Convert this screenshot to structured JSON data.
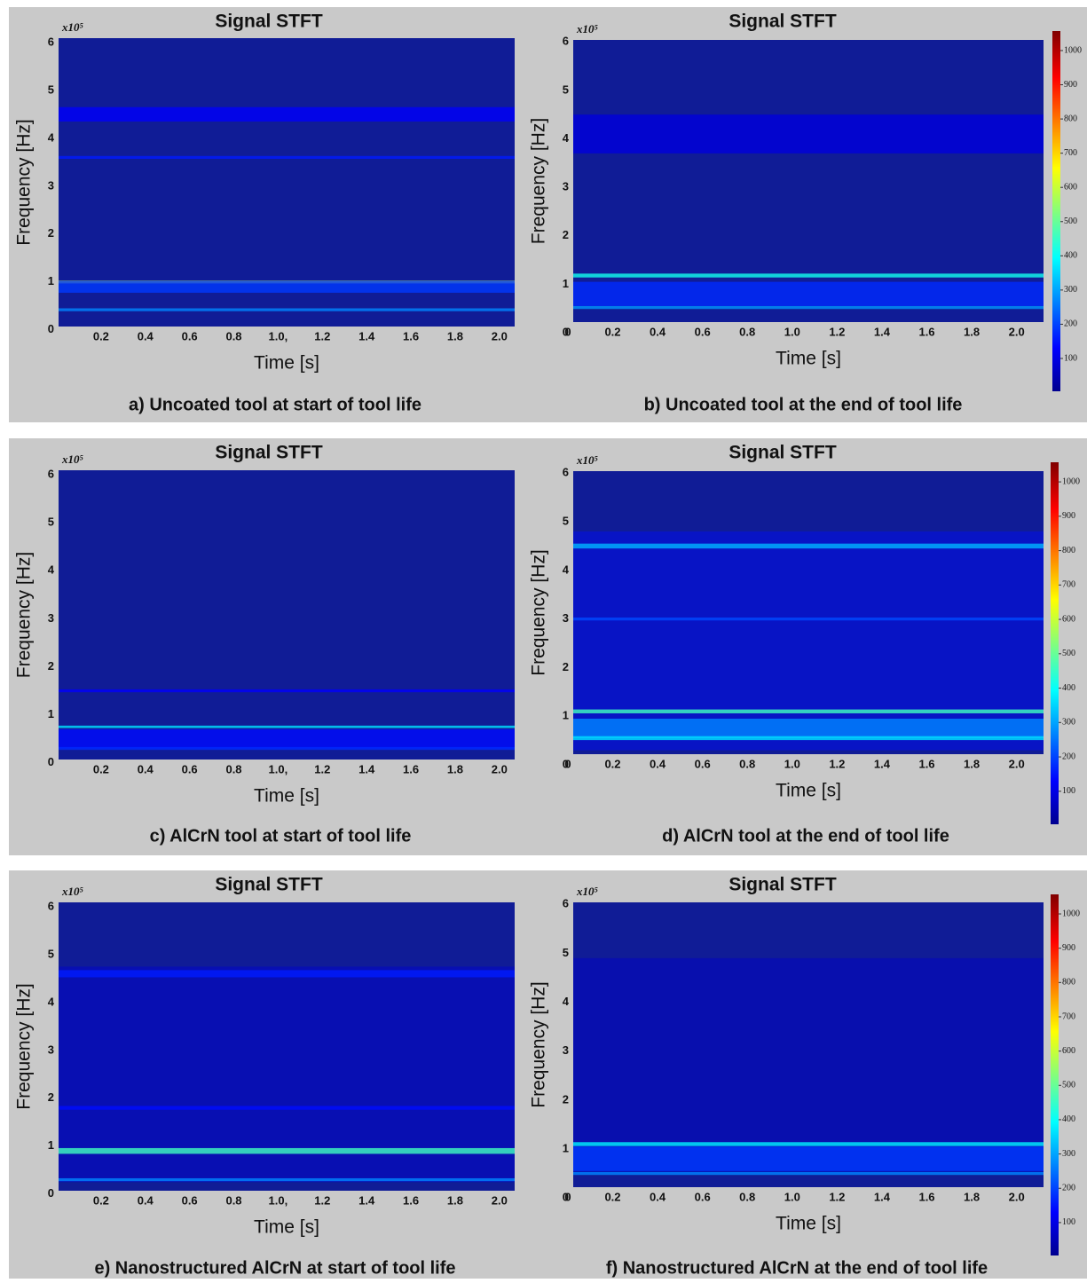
{
  "chart_data": [
    {
      "type": "heatmap",
      "title": "Signal STFT",
      "y_multiplier": "x10⁵",
      "xlabel": "Time [s]",
      "ylabel": "Frequency [Hz]",
      "caption": "a) Uncoated tool at start of tool life",
      "xlim": [
        0.008,
        2.069
      ],
      "xticks": [
        0.2,
        0.4,
        0.6,
        0.8,
        {
          "value": 1.0,
          "label": "1.0,"
        },
        1.2,
        1.4,
        1.6,
        1.8,
        {
          "value": 2.0,
          "label": "2.0"
        }
      ],
      "ylim": [
        0.07,
        6.09
      ],
      "yticks": [
        0,
        1,
        2,
        3,
        4,
        5,
        6
      ],
      "bands": [
        {
          "freq": 4.5,
          "width": 0.3,
          "intensity": 80
        },
        {
          "freq": 3.6,
          "width": 0.06,
          "intensity": 100
        },
        {
          "freq": 1.0,
          "width": 0.06,
          "intensity": 380
        },
        {
          "freq": 0.9,
          "width": 0.25,
          "intensity": 120
        },
        {
          "freq": 0.42,
          "width": 0.06,
          "intensity": 170
        }
      ]
    },
    {
      "type": "heatmap",
      "title": "Signal STFT",
      "y_multiplier": "x10⁵",
      "xlabel": "Time [s]",
      "ylabel": "Frequency [Hz]",
      "caption": "b) Uncoated tool at the end of tool life",
      "xlim": [
        0.024,
        2.12
      ],
      "xticks": [
        0,
        0.2,
        0.4,
        0.6,
        0.8,
        {
          "value": 1.0,
          "label": "1.0"
        },
        1.2,
        1.4,
        1.6,
        1.8,
        {
          "value": 2.0,
          "label": "2.0"
        }
      ],
      "ylim": [
        0.22,
        6.04
      ],
      "yticks": [
        0,
        1,
        2,
        3,
        4,
        5,
        6
      ],
      "colorbar": {
        "lim": [
          4,
          1057
        ],
        "ticks": [
          100,
          200,
          300,
          400,
          500,
          600,
          700,
          800,
          900,
          1000
        ]
      },
      "bands": [
        {
          "freq": 4.1,
          "width": 0.8,
          "intensity": 60
        },
        {
          "freq": 1.18,
          "width": 0.08,
          "intensity": 260
        },
        {
          "freq": 0.8,
          "width": 0.5,
          "intensity": 110
        },
        {
          "freq": 0.52,
          "width": 0.06,
          "intensity": 180
        }
      ]
    },
    {
      "type": "heatmap",
      "title": "Signal STFT",
      "y_multiplier": "x10⁵",
      "xlabel": "Time [s]",
      "ylabel": "Frequency [Hz]",
      "caption": "c) AlCrN tool at start of tool life",
      "xlim": [
        0.008,
        2.069
      ],
      "xticks": [
        0.2,
        0.4,
        0.6,
        0.8,
        {
          "value": 1.0,
          "label": "1.0,"
        },
        1.2,
        1.4,
        1.6,
        1.8,
        {
          "value": 2.0,
          "label": "2.0"
        }
      ],
      "ylim": [
        0.07,
        6.09
      ],
      "yticks": [
        0,
        1,
        2,
        3,
        4,
        5,
        6
      ],
      "bands": [
        {
          "freq": 1.5,
          "width": 0.06,
          "intensity": 80
        },
        {
          "freq": 0.75,
          "width": 0.05,
          "intensity": 230
        },
        {
          "freq": 0.5,
          "width": 0.4,
          "intensity": 90
        },
        {
          "freq": 0.3,
          "width": 0.06,
          "intensity": 110
        }
      ]
    },
    {
      "type": "heatmap",
      "title": "Signal STFT",
      "y_multiplier": "x10⁵",
      "xlabel": "Time [s]",
      "ylabel": "Frequency [Hz]",
      "caption": "d) AlCrN tool at the end of tool life",
      "xlim": [
        0.024,
        2.12
      ],
      "xticks": [
        0,
        0.2,
        0.4,
        0.6,
        0.8,
        {
          "value": 1.0,
          "label": "1.0"
        },
        1.2,
        1.4,
        1.6,
        1.8,
        {
          "value": 2.0,
          "label": "2.0"
        }
      ],
      "ylim": [
        0.22,
        6.04
      ],
      "yticks": [
        0,
        1,
        2,
        3,
        4,
        5,
        6
      ],
      "colorbar": {
        "lim": [
          4,
          1057
        ],
        "ticks": [
          100,
          200,
          300,
          400,
          500,
          600,
          700,
          800,
          900,
          1000
        ]
      },
      "bands": [
        {
          "freq": 2.55,
          "width": 4.5,
          "intensity": 90
        },
        {
          "freq": 4.5,
          "width": 0.1,
          "intensity": 200
        },
        {
          "freq": 3.0,
          "width": 0.06,
          "intensity": 130
        },
        {
          "freq": 1.1,
          "width": 0.08,
          "intensity": 290
        },
        {
          "freq": 0.75,
          "width": 0.4,
          "intensity": 170
        },
        {
          "freq": 0.55,
          "width": 0.08,
          "intensity": 230
        }
      ]
    },
    {
      "type": "heatmap",
      "title": "Signal STFT",
      "y_multiplier": "x10⁵",
      "xlabel": "Time [s]",
      "ylabel": "Frequency [Hz]",
      "caption": "e) Nanostructured AlCrN at start of tool life",
      "xlim": [
        0.008,
        2.069
      ],
      "xticks": [
        0.2,
        0.4,
        0.6,
        0.8,
        {
          "value": 1.0,
          "label": "1.0,"
        },
        1.2,
        1.4,
        1.6,
        1.8,
        {
          "value": 2.0,
          "label": "2.0"
        }
      ],
      "ylim": [
        0.07,
        6.09
      ],
      "yticks": [
        0,
        1,
        2,
        3,
        4,
        5,
        6
      ],
      "bands": [
        {
          "freq": 2.5,
          "width": 4.5,
          "intensity": 55
        },
        {
          "freq": 4.6,
          "width": 0.15,
          "intensity": 100
        },
        {
          "freq": 1.8,
          "width": 0.08,
          "intensity": 90
        },
        {
          "freq": 0.9,
          "width": 0.12,
          "intensity": 290
        },
        {
          "freq": 0.3,
          "width": 0.06,
          "intensity": 170
        }
      ]
    },
    {
      "type": "heatmap",
      "title": "Signal STFT",
      "y_multiplier": "x10⁵",
      "xlabel": "Time [s]",
      "ylabel": "Frequency [Hz]",
      "caption": "f) Nanostructured AlCrN at the end of tool life",
      "xlim": [
        0.024,
        2.12
      ],
      "xticks": [
        0,
        0.2,
        0.4,
        0.6,
        0.8,
        {
          "value": 1.0,
          "label": "1.0"
        },
        1.2,
        1.4,
        1.6,
        1.8,
        {
          "value": 2.0,
          "label": "2.0"
        }
      ],
      "ylim": [
        0.22,
        6.04
      ],
      "yticks": [
        0,
        1,
        2,
        3,
        4,
        5,
        6
      ],
      "colorbar": {
        "lim": [
          4,
          1057
        ],
        "ticks": [
          100,
          200,
          300,
          400,
          500,
          600,
          700,
          800,
          900,
          1000
        ]
      },
      "bands": [
        {
          "freq": 2.7,
          "width": 4.4,
          "intensity": 50
        },
        {
          "freq": 1.1,
          "width": 0.08,
          "intensity": 240
        },
        {
          "freq": 0.8,
          "width": 0.5,
          "intensity": 120
        },
        {
          "freq": 0.5,
          "width": 0.06,
          "intensity": 170
        }
      ]
    }
  ]
}
